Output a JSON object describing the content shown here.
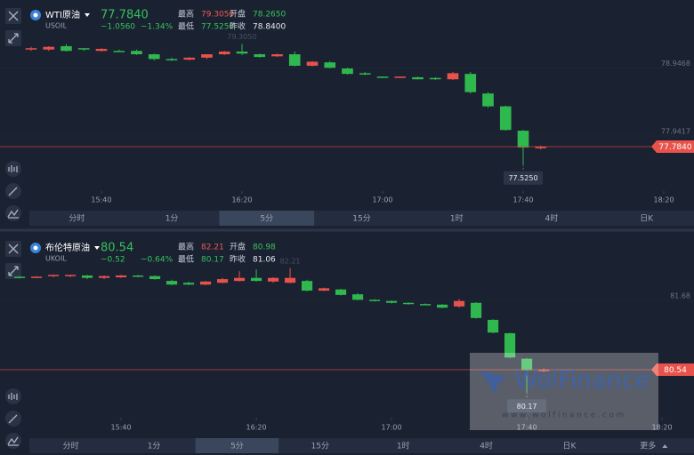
{
  "chart_data": [
    {
      "type": "candlestick",
      "title": "WTI原油",
      "subtitle": "USOIL",
      "last": {
        "value": 77.784,
        "label": "77.7840"
      },
      "change": "−1.0560",
      "change_pct": "−1.34%",
      "change_color": "#35c35c",
      "stats": [
        {
          "label": "最高",
          "value": "79.3050",
          "color": "#ee5b52"
        },
        {
          "label": "开盘",
          "value": "78.2650",
          "color": "#35c35c"
        },
        {
          "label": "最低",
          "value": "77.5250",
          "color": "#35c35c"
        },
        {
          "label": "昨收",
          "value": "78.8400",
          "color": "#e6e9ef"
        }
      ],
      "high_marker": {
        "value": 79.305,
        "label": "79.3050"
      },
      "low_marker": {
        "value": 77.525,
        "label": "77.5250"
      },
      "up_color": "#e8524b",
      "down_color": "#2fb84e",
      "x": [
        0,
        1,
        2,
        3,
        4,
        5,
        6,
        7,
        8,
        9,
        10,
        11,
        12,
        13,
        14,
        15,
        16,
        17,
        18,
        19,
        20,
        21,
        22,
        23,
        24,
        25,
        26,
        27,
        28,
        29
      ],
      "open": [
        79.22,
        79.22,
        79.27,
        79.24,
        79.2,
        79.2,
        79.2,
        79.15,
        79.08,
        79.07,
        79.1,
        79.15,
        79.19,
        79.15,
        79.12,
        79.15,
        78.98,
        79.03,
        78.94,
        78.87,
        78.82,
        78.8,
        78.81,
        78.8,
        78.78,
        78.86,
        78.57,
        78.38,
        78.02,
        77.76
      ],
      "high": [
        79.26,
        79.27,
        79.3,
        79.24,
        79.24,
        79.22,
        79.22,
        79.16,
        79.1,
        79.11,
        79.15,
        79.2,
        79.305,
        79.16,
        79.16,
        79.19,
        79.05,
        79.05,
        78.95,
        78.89,
        78.82,
        78.82,
        78.82,
        78.81,
        78.89,
        78.89,
        78.59,
        78.39,
        78.03,
        77.8
      ],
      "low": [
        79.2,
        79.2,
        79.19,
        79.2,
        79.19,
        79.19,
        79.14,
        79.06,
        79.05,
        79.06,
        79.08,
        79.14,
        79.14,
        79.1,
        79.11,
        78.97,
        78.97,
        78.94,
        78.85,
        78.84,
        78.8,
        78.8,
        78.78,
        78.77,
        78.77,
        78.57,
        78.36,
        78.02,
        77.525,
        77.74
      ],
      "close": [
        79.24,
        79.26,
        79.2,
        79.22,
        79.23,
        79.19,
        79.15,
        79.08,
        79.06,
        79.1,
        79.15,
        79.19,
        79.16,
        79.11,
        79.15,
        78.98,
        79.04,
        78.95,
        78.86,
        78.85,
        78.8,
        78.82,
        78.78,
        78.78,
        78.87,
        78.59,
        78.38,
        78.03,
        77.77,
        77.784
      ],
      "xlim": [
        -1.77,
        37.72
      ],
      "xticks": [
        {
          "value": 4,
          "label": "15:40"
        },
        {
          "value": 12,
          "label": "16:20"
        },
        {
          "value": 20,
          "label": "17:00"
        },
        {
          "value": 28,
          "label": "17:40"
        },
        {
          "value": 36,
          "label": "18:20"
        }
      ],
      "ylim": [
        77.127,
        79.427
      ],
      "yticks": [
        78.9468,
        77.9417
      ],
      "timeframes": [
        "分时",
        "1分",
        "5分",
        "15分",
        "1时",
        "4时",
        "日K"
      ],
      "selected_timeframe": "5分"
    },
    {
      "type": "candlestick",
      "title": "布伦特原油",
      "subtitle": "UKOIL",
      "last": {
        "value": 80.54,
        "label": "80.54"
      },
      "change": "−0.52",
      "change_pct": "−0.64%",
      "change_color": "#35c35c",
      "stats": [
        {
          "label": "最高",
          "value": "82.21",
          "color": "#ee5b52"
        },
        {
          "label": "开盘",
          "value": "80.98",
          "color": "#35c35c"
        },
        {
          "label": "最低",
          "value": "80.17",
          "color": "#35c35c"
        },
        {
          "label": "昨收",
          "value": "81.06",
          "color": "#e6e9ef"
        }
      ],
      "high_marker": {
        "value": 82.21,
        "label": "82.21"
      },
      "low_marker": {
        "value": 80.17,
        "label": "80.17"
      },
      "up_color": "#e8524b",
      "down_color": "#2fb84e",
      "x": [
        0,
        1,
        2,
        3,
        4,
        5,
        6,
        7,
        8,
        9,
        10,
        11,
        12,
        13,
        14,
        15,
        16,
        17,
        18,
        19,
        20,
        21,
        22,
        23,
        24,
        25,
        26,
        27,
        28,
        29,
        30,
        31
      ],
      "open": [
        82.07,
        82.06,
        82.08,
        82.08,
        82.09,
        82.05,
        82.06,
        82.09,
        82.08,
        82.0,
        81.97,
        81.94,
        81.97,
        82.0,
        82.05,
        81.99,
        81.97,
        82.0,
        81.84,
        81.86,
        81.78,
        81.69,
        81.67,
        81.64,
        81.62,
        81.61,
        81.58,
        81.64,
        81.36,
        81.14,
        80.72,
        80.53
      ],
      "high": [
        82.08,
        82.08,
        82.1,
        82.1,
        82.1,
        82.09,
        82.1,
        82.1,
        82.09,
        82.02,
        81.99,
        82.0,
        82.05,
        82.16,
        82.19,
        82.06,
        82.21,
        82.02,
        81.89,
        81.87,
        81.8,
        81.7,
        81.68,
        81.65,
        81.63,
        81.62,
        81.7,
        81.65,
        81.37,
        81.15,
        80.73,
        80.56
      ],
      "low": [
        82.05,
        82.05,
        82.06,
        82.06,
        82.03,
        82.03,
        82.05,
        82.06,
        82.02,
        81.93,
        81.93,
        81.93,
        81.96,
        81.99,
        81.99,
        81.97,
        81.96,
        81.83,
        81.83,
        81.76,
        81.68,
        81.66,
        81.63,
        81.61,
        81.6,
        81.55,
        81.56,
        81.38,
        81.14,
        80.73,
        80.17,
        80.5
      ],
      "close": [
        82.06,
        82.07,
        82.1,
        82.1,
        82.05,
        82.08,
        82.09,
        82.08,
        82.03,
        81.94,
        81.94,
        81.99,
        82.03,
        82.05,
        82.0,
        82.05,
        82.05,
        81.84,
        81.88,
        81.77,
        81.69,
        81.67,
        81.64,
        81.62,
        81.61,
        81.56,
        81.67,
        81.39,
        81.15,
        80.74,
        80.53,
        80.54
      ],
      "xlim": [
        -1.16,
        39.89
      ],
      "xticks": [
        {
          "value": 6,
          "label": "15:40"
        },
        {
          "value": 14,
          "label": "16:20"
        },
        {
          "value": 22,
          "label": "17:00"
        },
        {
          "value": 30,
          "label": "17:40"
        },
        {
          "value": 38,
          "label": "18:20"
        }
      ],
      "ylim": [
        79.75,
        82.236
      ],
      "yticks": [
        81.68
      ],
      "timeframes": [
        "分时",
        "1分",
        "5分",
        "15分",
        "1时",
        "4时",
        "日K",
        "更多"
      ],
      "selected_timeframe": "5分",
      "watermark": {
        "brand": "WolFinance",
        "url": "www.wolfinance.com"
      }
    }
  ]
}
